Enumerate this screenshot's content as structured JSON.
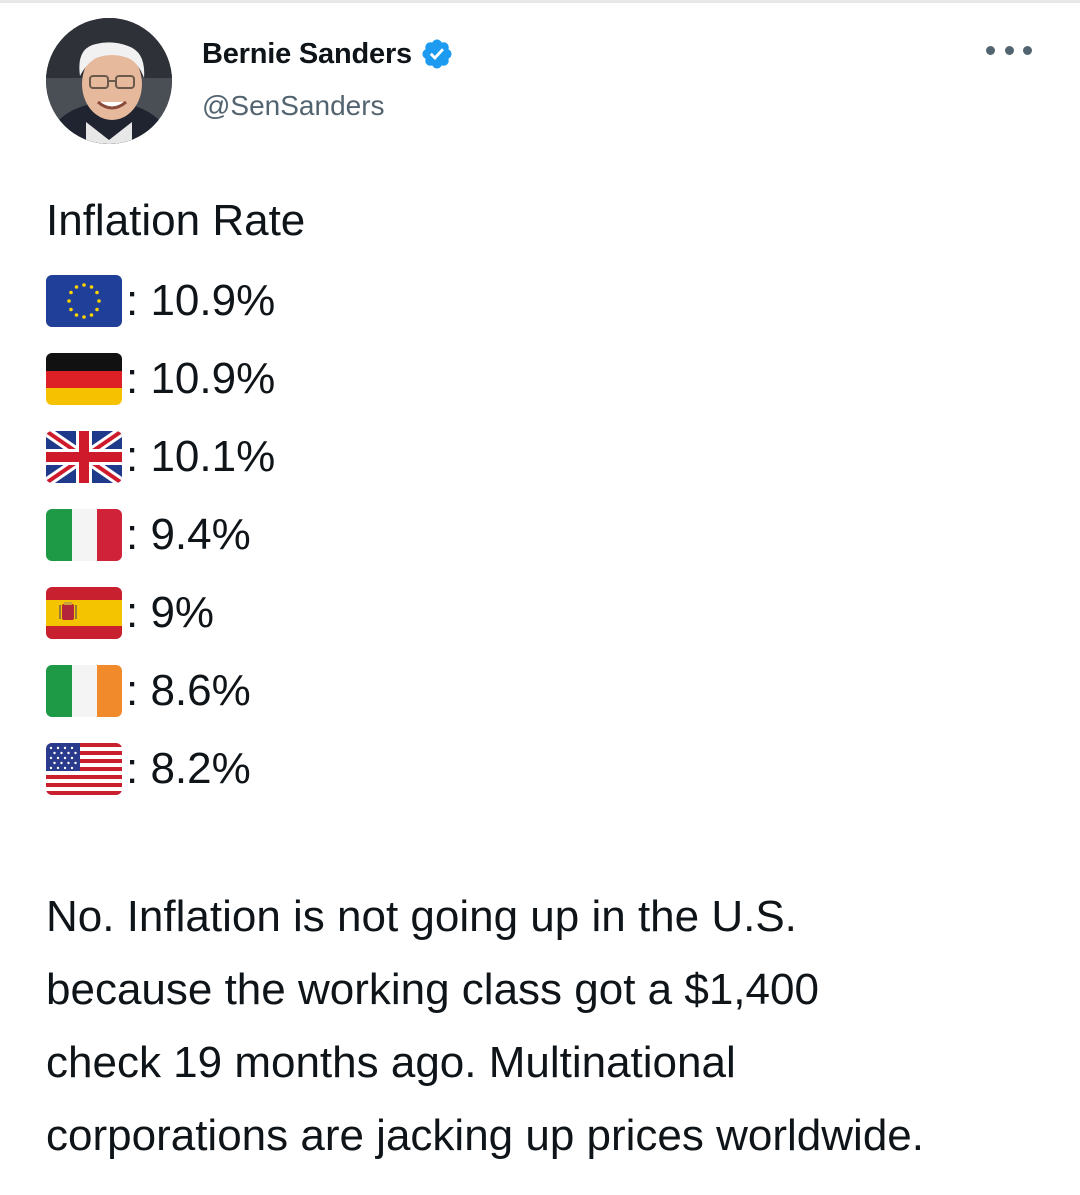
{
  "tweet": {
    "author": {
      "display_name": "Bernie Sanders",
      "handle": "@SenSanders",
      "verified": true,
      "avatar": "profile-photo"
    },
    "more_menu_icon": "ellipsis-icon",
    "title": "Inflation Rate",
    "rates": [
      {
        "flag": "eu-flag-icon",
        "text": ": 10.9%"
      },
      {
        "flag": "germany-flag-icon",
        "text": ": 10.9%"
      },
      {
        "flag": "uk-flag-icon",
        "text": ": 10.1%"
      },
      {
        "flag": "italy-flag-icon",
        "text": ": 9.4%"
      },
      {
        "flag": "spain-flag-icon",
        "text": ": 9%"
      },
      {
        "flag": "ireland-flag-icon",
        "text": ": 8.6%"
      },
      {
        "flag": "usa-flag-icon",
        "text": ": 8.2%"
      }
    ],
    "body_lines": [
      "No. Inflation is not going up in the U.S.",
      "because the working class got a $1,400",
      "check 19 months ago. Multinational",
      "corporations are jacking up prices worldwide."
    ]
  },
  "colors": {
    "text": "#0f1419",
    "secondary": "#536471",
    "verified_badge": "#1d9bf0"
  }
}
